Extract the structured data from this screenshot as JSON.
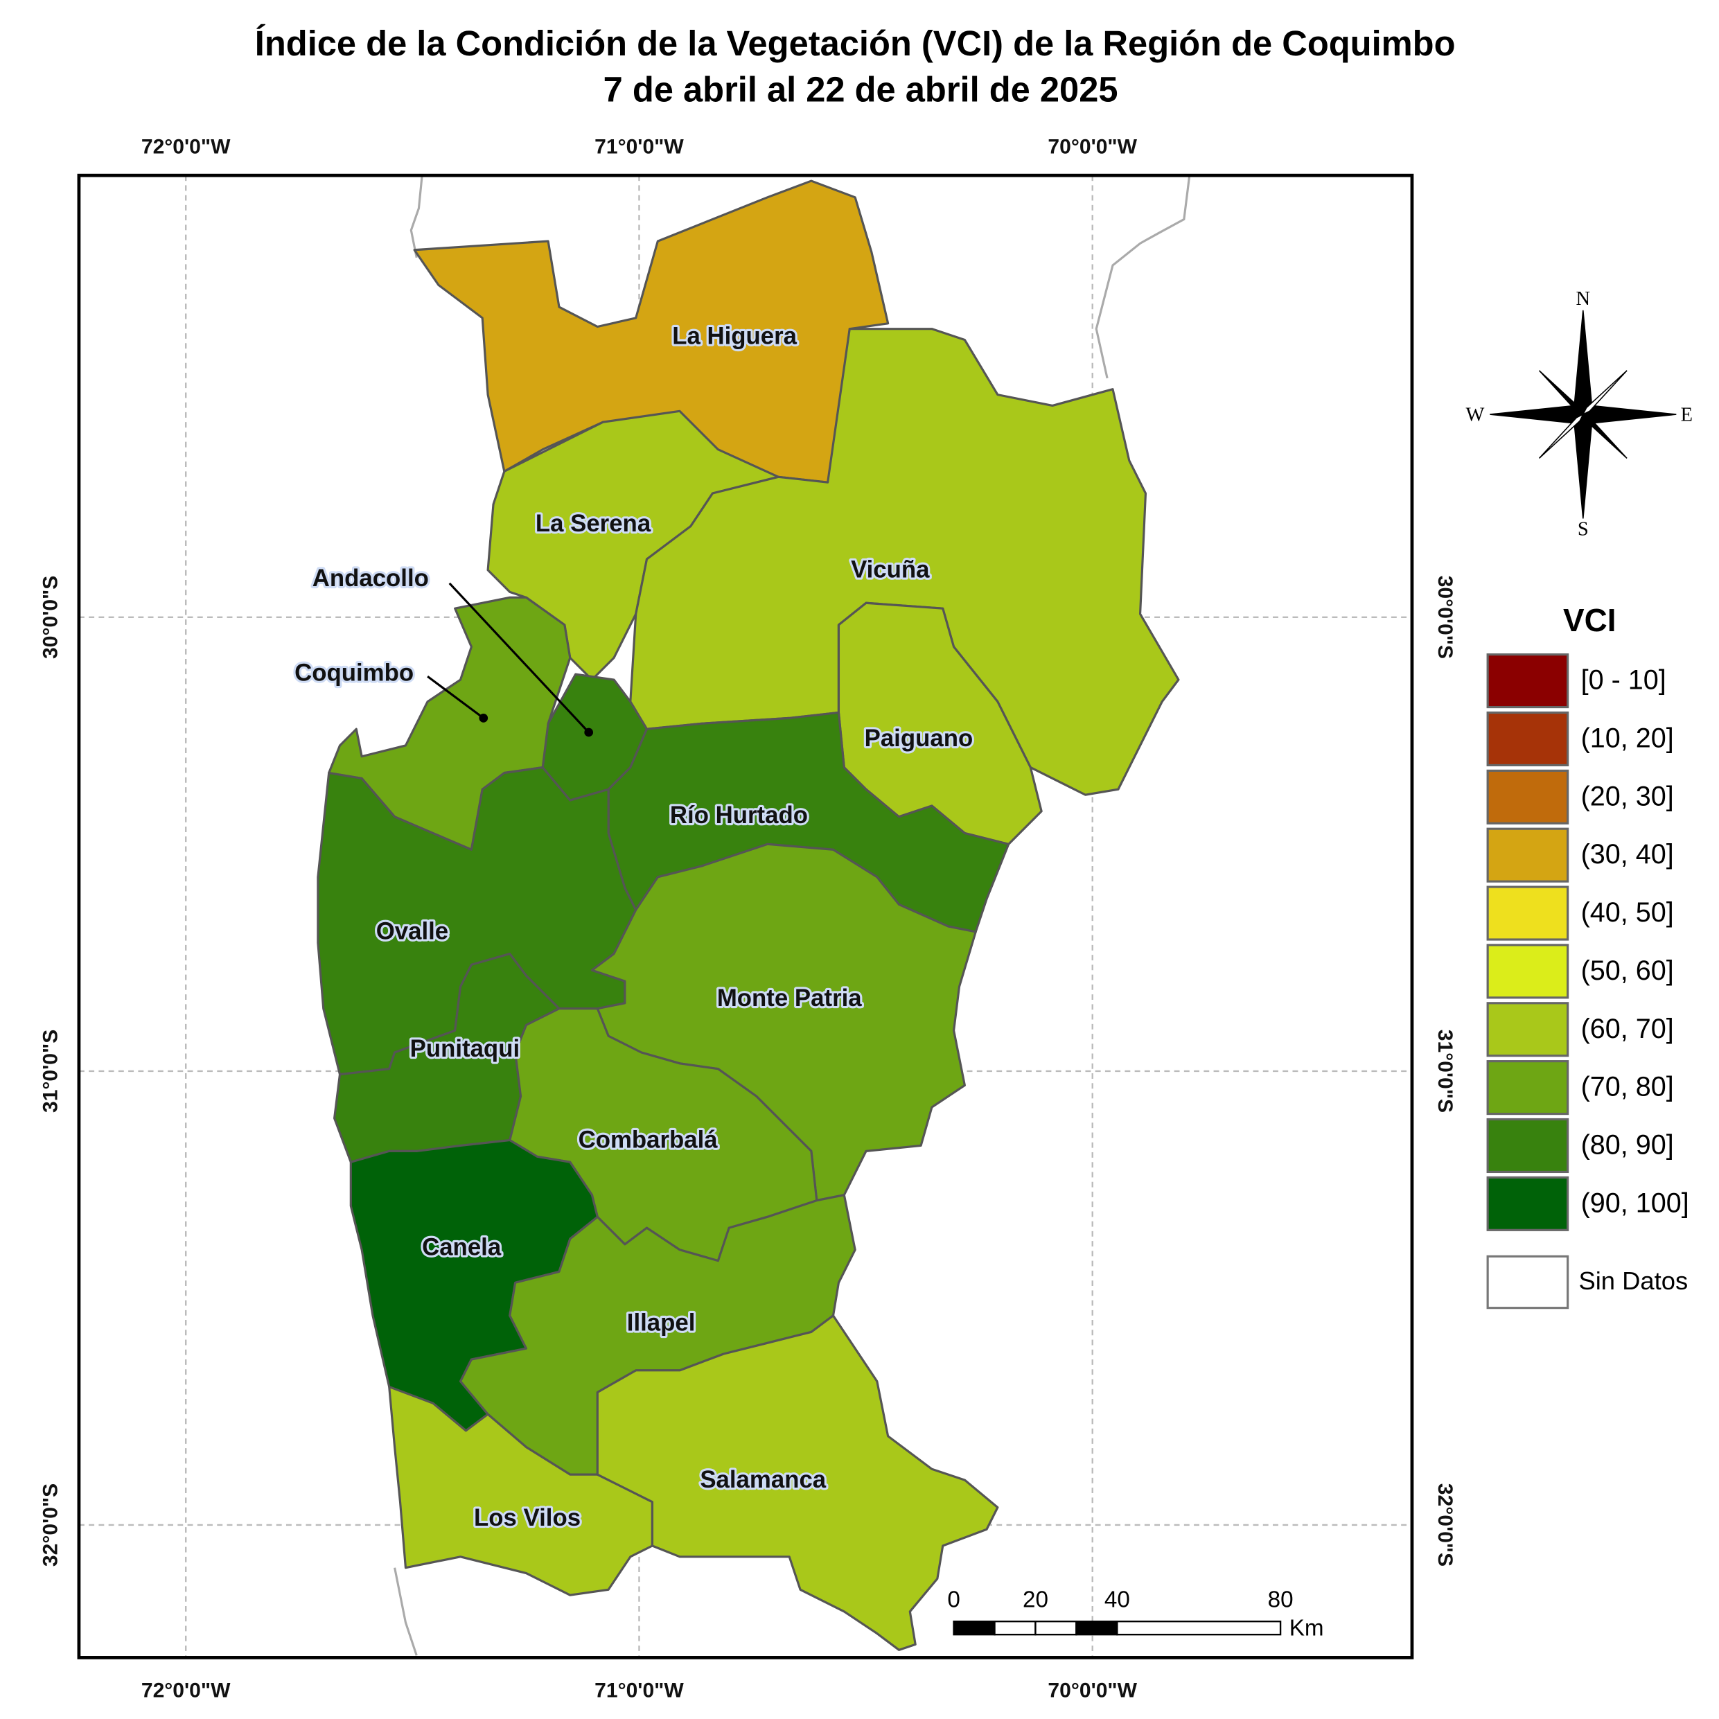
{
  "title": [
    "Índice de la Condición de la Vegetación (VCI) de la Región de Coquimbo",
    "7 de abril al 22 de abril de 2025"
  ],
  "lon_ticks": [
    {
      "value": -72,
      "label": "72°0'0\"W"
    },
    {
      "value": -71,
      "label": "71°0'0\"W"
    },
    {
      "value": -70,
      "label": "70°0'0\"W"
    }
  ],
  "lat_ticks": [
    {
      "value": -30,
      "label": "30°0'0\"S"
    },
    {
      "value": -31,
      "label": "31°0'0\"S"
    },
    {
      "value": -32,
      "label": "32°0'0\"S"
    }
  ],
  "communes": [
    {
      "name": "La Higuera",
      "color": "#d4a513"
    },
    {
      "name": "La Serena",
      "color": "#a9c81a"
    },
    {
      "name": "Vicuña",
      "color": "#a9c81a"
    },
    {
      "name": "Paiguano",
      "color": "#a9c81a"
    },
    {
      "name": "Andacollo",
      "color": "#38820e"
    },
    {
      "name": "Coquimbo",
      "color": "#6ea614"
    },
    {
      "name": "Río Hurtado",
      "color": "#38820e"
    },
    {
      "name": "Ovalle",
      "color": "#38820e"
    },
    {
      "name": "Monte Patria",
      "color": "#6ea614"
    },
    {
      "name": "Punitaqui",
      "color": "#38820e"
    },
    {
      "name": "Combarbalá",
      "color": "#6ea614"
    },
    {
      "name": "Canela",
      "color": "#006208"
    },
    {
      "name": "Illapel",
      "color": "#6ea614"
    },
    {
      "name": "Los Vilos",
      "color": "#a9c81a"
    },
    {
      "name": "Salamanca",
      "color": "#a9c81a"
    }
  ],
  "legend": {
    "title": "VCI",
    "items": [
      {
        "label": "[0 - 10]",
        "color": "#8b0000"
      },
      {
        "label": "(10, 20]",
        "color": "#a63308"
      },
      {
        "label": "(20, 30]",
        "color": "#c06b0c"
      },
      {
        "label": "(30, 40]",
        "color": "#d4a513"
      },
      {
        "label": "(40, 50]",
        "color": "#eee01e"
      },
      {
        "label": "(50, 60]",
        "color": "#dbed1a"
      },
      {
        "label": "(60, 70]",
        "color": "#a9c81a"
      },
      {
        "label": "(70, 80]",
        "color": "#6ea614"
      },
      {
        "label": "(80, 90]",
        "color": "#38820e"
      },
      {
        "label": "(90, 100]",
        "color": "#006208"
      }
    ],
    "no_data": {
      "label": "Sin Datos",
      "color": "#ffffff"
    }
  },
  "compass": {
    "north": "N",
    "east": "E",
    "south": "S",
    "west": "W"
  },
  "scale_bar": {
    "ticks": [
      0,
      20,
      40,
      80
    ],
    "unit": "Km"
  }
}
